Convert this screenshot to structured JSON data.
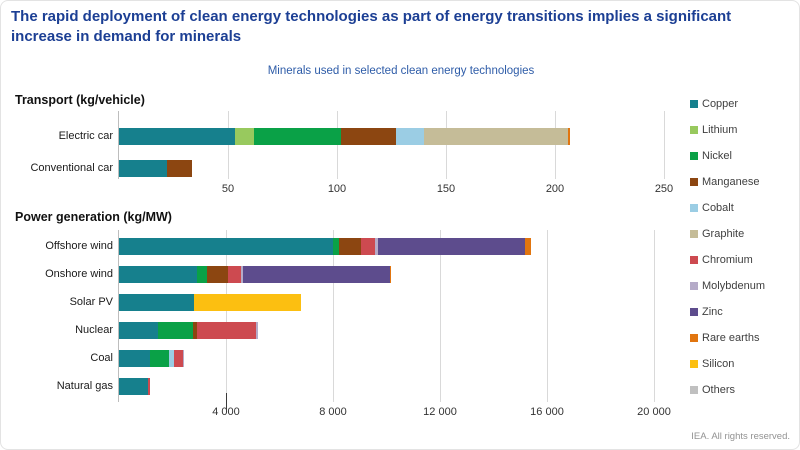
{
  "title": "The rapid deployment of clean energy technologies as part of energy transitions implies a significant increase in demand for minerals",
  "subtitle": "Minerals used in selected clean energy technologies",
  "footer": "IEA. All rights reserved.",
  "colors": {
    "title_text": "#1C3F94",
    "subtitle_text": "#2E5CA8",
    "gridline": "#d9d9d9",
    "axis_line": "#bdbdbd"
  },
  "legend": {
    "items": [
      {
        "label": "Copper",
        "color": "#16808D"
      },
      {
        "label": "Lithium",
        "color": "#98C95E"
      },
      {
        "label": "Nickel",
        "color": "#0AA147"
      },
      {
        "label": "Manganese",
        "color": "#8C4611"
      },
      {
        "label": "Cobalt",
        "color": "#9BCDE4"
      },
      {
        "label": "Graphite",
        "color": "#C5BC98"
      },
      {
        "label": "Chromium",
        "color": "#CD4A50"
      },
      {
        "label": "Molybdenum",
        "color": "#B5ABC8"
      },
      {
        "label": "Zinc",
        "color": "#5D4C8D"
      },
      {
        "label": "Rare earths",
        "color": "#E1750F"
      },
      {
        "label": "Silicon",
        "color": "#FCBF11"
      },
      {
        "label": "Others",
        "color": "#C0C0C0"
      }
    ]
  },
  "chart_data": [
    {
      "type": "bar",
      "orientation": "horizontal",
      "stacked": true,
      "title": "Transport (kg/vehicle)",
      "unit": "kg/vehicle",
      "grid": true,
      "xlim": [
        0,
        255
      ],
      "x_ticks": [
        {
          "value": 50,
          "label": "50"
        },
        {
          "value": 100,
          "label": "100"
        },
        {
          "value": 150,
          "label": "150"
        },
        {
          "value": 200,
          "label": "200"
        },
        {
          "value": 250,
          "label": "250"
        }
      ],
      "categories": [
        "Electric car",
        "Conventional car"
      ],
      "series": [
        {
          "name": "Copper",
          "values": [
            53,
            22
          ]
        },
        {
          "name": "Lithium",
          "values": [
            9,
            0
          ]
        },
        {
          "name": "Nickel",
          "values": [
            40,
            0
          ]
        },
        {
          "name": "Manganese",
          "values": [
            25,
            11.5
          ]
        },
        {
          "name": "Cobalt",
          "values": [
            13,
            0
          ]
        },
        {
          "name": "Graphite",
          "values": [
            66,
            0
          ]
        },
        {
          "name": "Rare earths",
          "values": [
            1,
            0
          ]
        }
      ]
    },
    {
      "type": "bar",
      "orientation": "horizontal",
      "stacked": true,
      "title": "Power generation (kg/MW)",
      "unit": "kg/MW",
      "grid": true,
      "xlim": [
        0,
        20700
      ],
      "x_ticks": [
        {
          "value": 4000,
          "label": "4 000"
        },
        {
          "value": 8000,
          "label": "8 000"
        },
        {
          "value": 12000,
          "label": "12 000"
        },
        {
          "value": 16000,
          "label": "16 000"
        },
        {
          "value": 20000,
          "label": "20 000"
        }
      ],
      "categories": [
        "Offshore wind",
        "Onshore wind",
        "Solar PV",
        "Nuclear",
        "Coal",
        "Natural gas"
      ],
      "series": [
        {
          "name": "Copper",
          "values": [
            8000,
            2900,
            2800,
            1470,
            1150,
            1100
          ]
        },
        {
          "name": "Nickel",
          "values": [
            240,
            400,
            0,
            1300,
            720,
            0
          ]
        },
        {
          "name": "Manganese",
          "values": [
            790,
            780,
            0,
            150,
            0,
            0
          ]
        },
        {
          "name": "Cobalt",
          "values": [
            0,
            0,
            0,
            0,
            200,
            0
          ]
        },
        {
          "name": "Chromium",
          "values": [
            525,
            470,
            0,
            2190,
            310,
            50
          ]
        },
        {
          "name": "Molybdenum",
          "values": [
            110,
            100,
            0,
            70,
            70,
            0
          ]
        },
        {
          "name": "Zinc",
          "values": [
            5500,
            5500,
            0,
            0,
            0,
            0
          ]
        },
        {
          "name": "Rare earths",
          "values": [
            240,
            14,
            0,
            0,
            0,
            0
          ]
        },
        {
          "name": "Silicon",
          "values": [
            0,
            0,
            4000,
            0,
            0,
            0
          ]
        }
      ]
    }
  ]
}
